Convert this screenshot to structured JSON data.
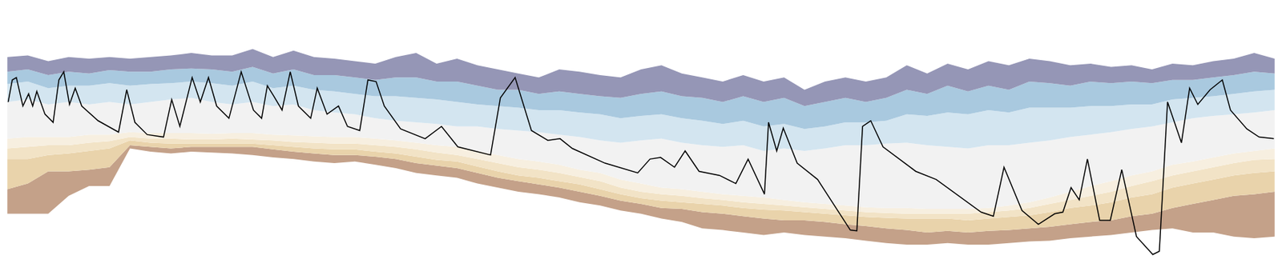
{
  "chart_data": {
    "type": "area",
    "x": [
      9,
      34,
      59,
      84,
      109,
      134,
      159,
      184,
      209,
      234,
      259,
      284,
      309,
      334,
      359,
      384,
      409,
      434,
      459,
      484,
      509,
      534,
      559,
      584,
      609,
      634,
      659,
      684,
      709,
      734,
      759,
      784,
      809,
      834,
      859,
      884,
      909,
      934,
      959,
      984,
      1009,
      1034,
      1059,
      1084,
      1109,
      1134,
      1159,
      1184,
      1209,
      1234,
      1259,
      1284,
      1309,
      1334,
      1359,
      1384,
      1409,
      1434,
      1459,
      1484,
      1509,
      1534,
      1559
    ],
    "series": [
      {
        "values": [
          80,
          80,
          80,
          102,
          114,
          114,
          160,
          156,
          154,
          156,
          155,
          154,
          152,
          149,
          147,
          144,
          142,
          144,
          140,
          136,
          130,
          127,
          124,
          117,
          112,
          107,
          104,
          100,
          94,
          90,
          84,
          80,
          74,
          70,
          62,
          60,
          57,
          54,
          57,
          54,
          52,
          50,
          47,
          44,
          42,
          42,
          44,
          42,
          42,
          44,
          46,
          47,
          50,
          52,
          54,
          57,
          60,
          62,
          57,
          57,
          52,
          50,
          52
        ]
      },
      {
        "values": [
          110,
          117,
          132,
          132,
          134,
          137,
          164,
          162,
          160,
          162,
          162,
          162,
          162,
          159,
          156,
          154,
          152,
          152,
          150,
          147,
          142,
          139,
          136,
          130,
          124,
          120,
          116,
          112,
          107,
          102,
          96,
          92,
          87,
          86,
          82,
          80,
          77,
          74,
          72,
          72,
          70,
          67,
          65,
          62,
          60,
          57,
          59,
          57,
          59,
          60,
          62,
          64,
          67,
          70,
          72,
          77,
          80,
          87,
          92,
          97,
          102,
          104,
          107
        ]
      },
      {
        "values": [
          147,
          147,
          152,
          154,
          157,
          160,
          170,
          167,
          166,
          166,
          166,
          166,
          166,
          164,
          162,
          160,
          159,
          159,
          156,
          154,
          150,
          146,
          144,
          138,
          132,
          127,
          124,
          120,
          116,
          110,
          104,
          99,
          96,
          94,
          92,
          90,
          87,
          85,
          84,
          82,
          80,
          78,
          76,
          75,
          74,
          74,
          74,
          72,
          74,
          76,
          78,
          82,
          87,
          90,
          94,
          100,
          104,
          112,
          117,
          122,
          127,
          130,
          132
        ]
      },
      {
        "values": [
          160,
          162,
          164,
          164,
          167,
          169,
          174,
          172,
          172,
          171,
          171,
          172,
          171,
          170,
          168,
          167,
          166,
          166,
          164,
          162,
          159,
          155,
          152,
          147,
          142,
          137,
          134,
          130,
          125,
          120,
          112,
          107,
          104,
          102,
          99,
          97,
          94,
          92,
          90,
          88,
          86,
          84,
          82,
          81,
          80,
          80,
          80,
          80,
          82,
          84,
          87,
          92,
          97,
          102,
          107,
          114,
          120,
          127,
          132,
          137,
          142,
          146,
          147
        ]
      },
      {
        "values": [
          172,
          174,
          174,
          174,
          177,
          177,
          180,
          179,
          179,
          179,
          178,
          179,
          179,
          177,
          176,
          175,
          174,
          174,
          172,
          170,
          167,
          164,
          162,
          157,
          152,
          147,
          144,
          140,
          134,
          130,
          122,
          117,
          112,
          110,
          107,
          104,
          102,
          100,
          97,
          94,
          92,
          90,
          88,
          87,
          87,
          86,
          86,
          86,
          87,
          90,
          94,
          100,
          107,
          114,
          120,
          127,
          132,
          140,
          144,
          149,
          154,
          157,
          160
        ]
      },
      {
        "values": [
          217,
          220,
          214,
          217,
          214,
          217,
          214,
          217,
          220,
          222,
          217,
          214,
          217,
          212,
          214,
          207,
          204,
          202,
          197,
          194,
          192,
          190,
          187,
          187,
          184,
          182,
          180,
          177,
          174,
          170,
          167,
          170,
          172,
          167,
          164,
          162,
          164,
          157,
          160,
          157,
          160,
          164,
          164,
          166,
          167,
          164,
          162,
          160,
          164,
          164,
          167,
          170,
          174,
          177,
          180,
          184,
          187,
          192,
          197,
          200,
          202,
          204,
          207
        ]
      },
      {
        "values": [
          239,
          242,
          234,
          237,
          237,
          240,
          237,
          239,
          240,
          242,
          240,
          237,
          242,
          234,
          237,
          232,
          230,
          227,
          224,
          224,
          222,
          220,
          217,
          214,
          212,
          210,
          207,
          207,
          204,
          202,
          197,
          200,
          202,
          197,
          194,
          190,
          194,
          187,
          190,
          184,
          187,
          192,
          192,
          194,
          202,
          200,
          204,
          202,
          207,
          204,
          210,
          210,
          210,
          212,
          212,
          214,
          214,
          220,
          222,
          224,
          227,
          230,
          232
        ]
      },
      {
        "values": [
          254,
          257,
          250,
          254,
          252,
          256,
          254,
          254,
          257,
          258,
          257,
          254,
          260,
          252,
          257,
          250,
          250,
          247,
          244,
          247,
          247,
          242,
          242,
          237,
          232,
          232,
          227,
          230,
          227,
          224,
          222,
          227,
          230,
          224,
          222,
          217,
          224,
          217,
          222,
          212,
          217,
          222,
          217,
          222,
          232,
          227,
          237,
          230,
          237,
          232,
          242,
          240,
          237,
          242,
          240,
          242,
          240,
          244,
          244,
          247,
          250,
          254,
          252
        ]
      },
      {
        "values": [
          272,
          274,
          267,
          272,
          270,
          272,
          270,
          272,
          274,
          277,
          274,
          274,
          282,
          272,
          280,
          272,
          270,
          267,
          264,
          272,
          277,
          264,
          270,
          262,
          257,
          252,
          247,
          257,
          254,
          250,
          247,
          257,
          262,
          252,
          247,
          242,
          250,
          242,
          247,
          232,
          242,
          247,
          242,
          247,
          262,
          252,
          264,
          257,
          267,
          262,
          270,
          267,
          262,
          264,
          260,
          262,
          257,
          264,
          262,
          267,
          270,
          277,
          270
        ]
      },
      {
        "type": "line",
        "color": "#000000",
        "x": [
          10,
          15,
          20,
          28,
          35,
          40,
          45,
          55,
          65,
          72,
          78,
          85,
          92,
          100,
          120,
          145,
          155,
          165,
          180,
          200,
          210,
          220,
          235,
          245,
          255,
          265,
          280,
          295,
          310,
          320,
          327,
          335,
          345,
          355,
          365,
          380,
          388,
          400,
          414,
          425,
          440,
          450,
          460,
          470,
          490,
          520,
          540,
          560,
          600,
          612,
          630,
          650,
          670,
          685,
          700,
          740,
          780,
          795,
          808,
          825,
          838,
          855,
          880,
          900,
          915,
          935,
          940,
          950,
          958,
          975,
          1000,
          1040,
          1048,
          1055,
          1065,
          1080,
          1120,
          1145,
          1200,
          1215,
          1228,
          1250,
          1270,
          1290,
          1300,
          1310,
          1320,
          1330,
          1345,
          1358,
          1372,
          1390,
          1410,
          1418,
          1428,
          1445,
          1455,
          1465,
          1480,
          1495,
          1505,
          1525,
          1540,
          1558
        ],
        "values": [
          217,
          244,
          247,
          212,
          227,
          212,
          230,
          202,
          192,
          244,
          254,
          214,
          234,
          212,
          194,
          180,
          232,
          192,
          177,
          174,
          220,
          187,
          247,
          217,
          247,
          212,
          197,
          254,
          207,
          197,
          237,
          224,
          207,
          254,
          212,
          197,
          234,
          202,
          212,
          187,
          182,
          244,
          242,
          212,
          184,
          172,
          187,
          162,
          152,
          222,
          247,
          182,
          170,
          172,
          160,
          142,
          130,
          147,
          149,
          137,
          157,
          132,
          127,
          117,
          147,
          104,
          192,
          157,
          185,
          142,
          122,
          60,
          59,
          187,
          194,
          162,
          132,
          122,
          82,
          77,
          137,
          84,
          67,
          80,
          82,
          112,
          97,
          147,
          72,
          72,
          134,
          52,
          30,
          34,
          217,
          167,
          234,
          214,
          232,
          244,
          207,
          184,
          174,
          172
        ]
      }
    ],
    "colors": [
      "#c4a189",
      "#e9d3ab",
      "#f2e3c6",
      "#f7efe0",
      "#f2f2f2",
      "#d3e5f0",
      "#a9c9df",
      "#9596b6"
    ],
    "xlim": [
      0,
      1568
    ],
    "ylim": [
      0,
      342
    ],
    "tick_labels": false
  }
}
